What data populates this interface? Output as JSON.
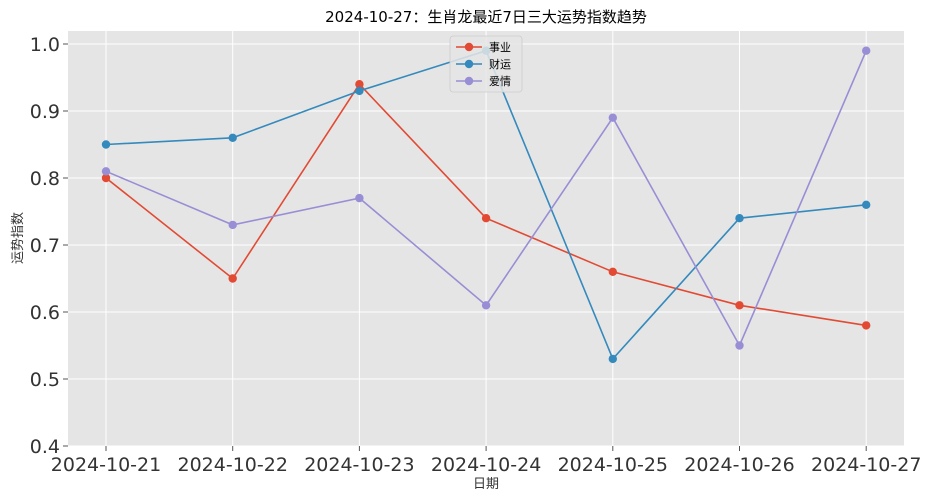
{
  "chart_data": {
    "type": "line",
    "title": "2024-10-27：生肖龙最近7日三大运势指数趋势",
    "xlabel": "日期",
    "ylabel": "运势指数",
    "categories": [
      "2024-10-21",
      "2024-10-22",
      "2024-10-23",
      "2024-10-24",
      "2024-10-25",
      "2024-10-26",
      "2024-10-27"
    ],
    "ylim": [
      0.4,
      1.0
    ],
    "yticks": [
      "0.4",
      "0.5",
      "0.6",
      "0.7",
      "0.8",
      "0.9",
      "1.0"
    ],
    "grid": true,
    "legend_position": "top-center",
    "series": [
      {
        "name": "事业",
        "color": "#E24A33",
        "values": [
          0.8,
          0.65,
          0.94,
          0.74,
          0.66,
          0.61,
          0.58
        ]
      },
      {
        "name": "财运",
        "color": "#348ABD",
        "values": [
          0.85,
          0.86,
          0.93,
          0.99,
          0.53,
          0.74,
          0.76
        ]
      },
      {
        "name": "爱情",
        "color": "#988ED5",
        "values": [
          0.81,
          0.73,
          0.77,
          0.61,
          0.89,
          0.55,
          0.99
        ]
      }
    ]
  }
}
